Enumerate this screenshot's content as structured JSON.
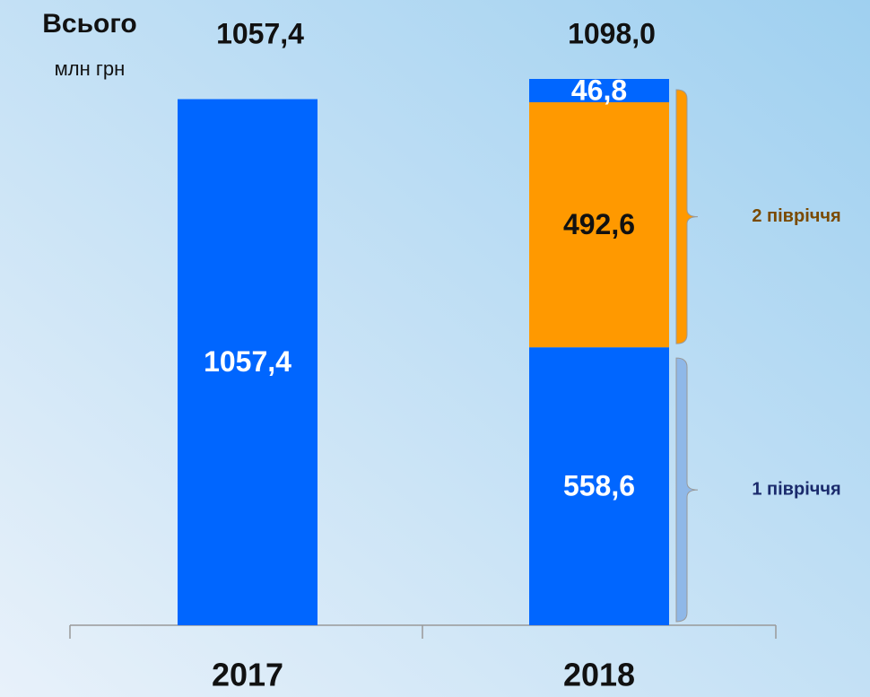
{
  "chart_data": {
    "type": "stacked_bar",
    "title": "Всього",
    "subtitle": "млн грн",
    "categories": [
      "2017",
      "2018"
    ],
    "totals": [
      1057.4,
      1098.0
    ],
    "total_labels": [
      "1057,4",
      "1098,0"
    ],
    "series": [
      {
        "color": "#0066ff",
        "values": [
          1057.4,
          558.6
        ],
        "value_labels": [
          "1057,4",
          "558,6"
        ]
      },
      {
        "color": "#ff9900",
        "values": [
          null,
          492.6
        ],
        "value_labels": [
          null,
          "492,6"
        ]
      },
      {
        "color": "#0066ff",
        "values": [
          null,
          46.8
        ],
        "value_labels": [
          null,
          "46,8"
        ]
      }
    ],
    "annotations": [
      {
        "text": "1 півріччя",
        "color": "#1a2a6c"
      },
      {
        "text": "2 півріччя",
        "color": "#7a4a00"
      }
    ]
  }
}
